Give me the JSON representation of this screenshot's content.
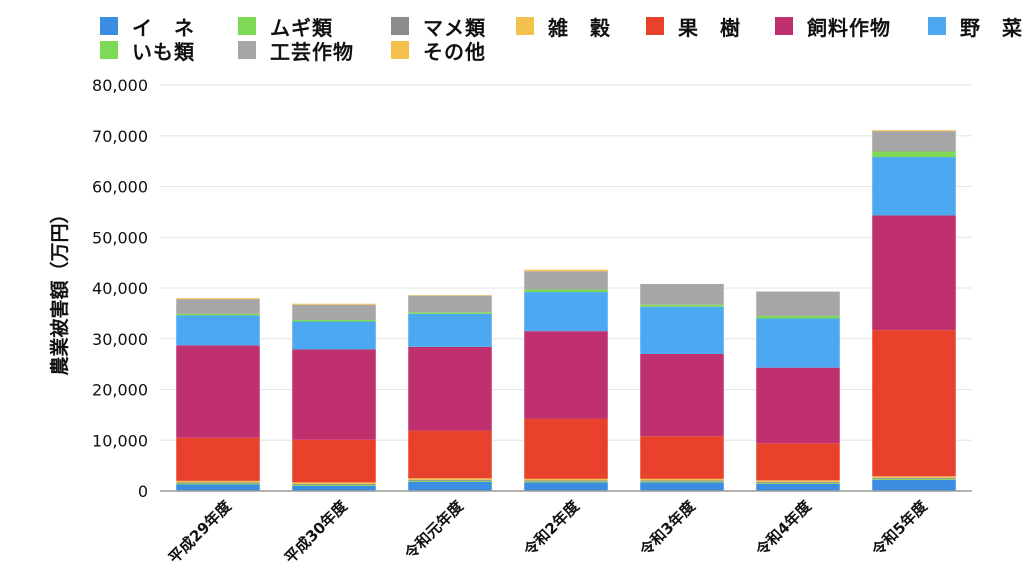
{
  "chart_data": {
    "type": "bar",
    "stacked": true,
    "title": "",
    "xlabel": "",
    "ylabel": "農業被害額（万円）",
    "ylim": [
      0,
      80000
    ],
    "yticks": [
      "0",
      "10,000",
      "20,000",
      "30,000",
      "40,000",
      "50,000",
      "60,000",
      "70,000",
      "80,000"
    ],
    "grid": true,
    "legend_position": "top",
    "categories": [
      "平成29年度",
      "平成30年度",
      "令和元年度",
      "令和2年度",
      "令和3年度",
      "令和4年度",
      "令和5年度"
    ],
    "series": [
      {
        "name": "イ　ネ",
        "color": "#3a8de0",
        "values": [
          1300,
          1000,
          1800,
          1700,
          1700,
          1400,
          2200
        ]
      },
      {
        "name": "ムギ類",
        "color": "#7ed957",
        "values": [
          200,
          200,
          200,
          200,
          200,
          200,
          200
        ]
      },
      {
        "name": "マメ類",
        "color": "#8c8c8c",
        "values": [
          200,
          200,
          200,
          200,
          200,
          200,
          200
        ]
      },
      {
        "name": "雑　穀",
        "color": "#f2c14e",
        "values": [
          300,
          300,
          300,
          300,
          300,
          300,
          300
        ]
      },
      {
        "name": "果　樹",
        "color": "#e8412c",
        "values": [
          8500,
          8400,
          9400,
          11800,
          8400,
          7300,
          28800
        ]
      },
      {
        "name": "飼料作物",
        "color": "#c0306e",
        "values": [
          18200,
          17800,
          16500,
          17300,
          16200,
          14900,
          22600
        ]
      },
      {
        "name": "野　菜",
        "color": "#4ca8f0",
        "values": [
          5900,
          5500,
          6500,
          7700,
          9300,
          9700,
          11500
        ]
      },
      {
        "name": "いも類",
        "color": "#7ed957",
        "values": [
          300,
          300,
          300,
          500,
          400,
          500,
          1100
        ]
      },
      {
        "name": "工芸作物",
        "color": "#a6a6a6",
        "values": [
          2900,
          3000,
          3300,
          3600,
          4100,
          4800,
          4000
        ]
      },
      {
        "name": "その他",
        "color": "#f2c14e",
        "values": [
          200,
          200,
          100,
          300,
          0,
          0,
          200
        ]
      }
    ]
  },
  "legend": {
    "items": [
      {
        "label": "イ　ネ",
        "color": "#3a8de0"
      },
      {
        "label": "ムギ類",
        "color": "#7ed957"
      },
      {
        "label": "マメ類",
        "color": "#8c8c8c"
      },
      {
        "label": "雑　穀",
        "color": "#f2c14e"
      },
      {
        "label": "果　樹",
        "color": "#e8412c"
      },
      {
        "label": "飼料作物",
        "color": "#c0306e"
      },
      {
        "label": "野　菜",
        "color": "#4ca8f0"
      },
      {
        "label": "いも類",
        "color": "#7ed957"
      },
      {
        "label": "工芸作物",
        "color": "#a6a6a6"
      },
      {
        "label": "その他",
        "color": "#f2c14e"
      }
    ]
  }
}
